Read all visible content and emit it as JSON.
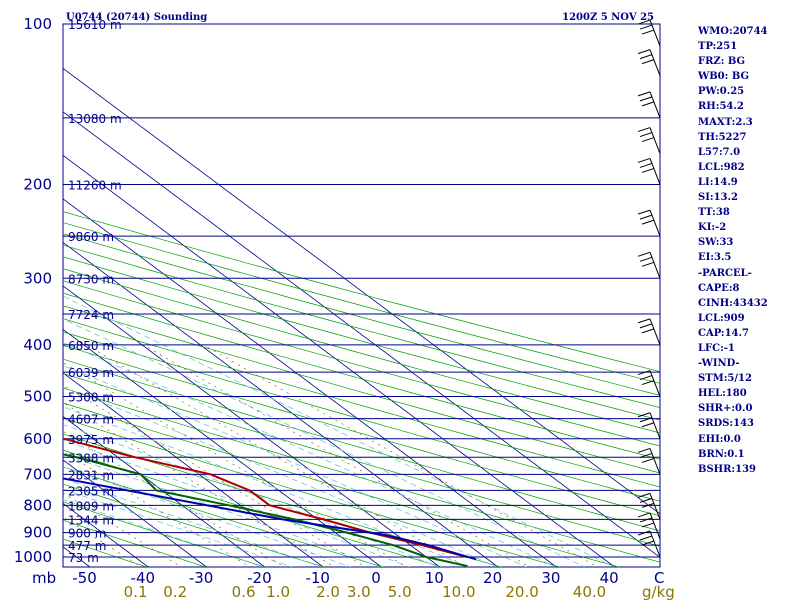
{
  "header": {
    "title": "U0744 (20744) Sounding",
    "time": "1200Z  5 NOV 25"
  },
  "chart_data": {
    "type": "line",
    "title": "U0744 (20744) Sounding",
    "subtitle": "1200Z  5 NOV 25",
    "xlabel": "C",
    "ylabel": "mb",
    "xlim": [
      -50,
      50
    ],
    "ylim": [
      1050,
      100
    ],
    "pressure_levels": [
      100,
      200,
      300,
      400,
      500,
      600,
      700,
      800,
      900,
      1000
    ],
    "height_labels": [
      {
        "p": 100,
        "label": "15610 m"
      },
      {
        "p": 150,
        "label": "13080 m"
      },
      {
        "p": 200,
        "label": "11260 m"
      },
      {
        "p": 250,
        "label": "9860 m"
      },
      {
        "p": 300,
        "label": "8730 m"
      },
      {
        "p": 350,
        "label": "7724 m"
      },
      {
        "p": 400,
        "label": "6850 m"
      },
      {
        "p": 450,
        "label": "6039 m"
      },
      {
        "p": 500,
        "label": "5300 m"
      },
      {
        "p": 550,
        "label": "4607 m"
      },
      {
        "p": 600,
        "label": "3975 m"
      },
      {
        "p": 650,
        "label": "3388 m"
      },
      {
        "p": 700,
        "label": "2831 m"
      },
      {
        "p": 750,
        "label": "2305 m"
      },
      {
        "p": 800,
        "label": "1809 m"
      },
      {
        "p": 850,
        "label": "1344 m"
      },
      {
        "p": 900,
        "label": "900 m"
      },
      {
        "p": 950,
        "label": "477 m"
      },
      {
        "p": 1000,
        "label": "73 m"
      }
    ],
    "temperature_ticks": [
      "-50",
      "-40",
      "-30",
      "-20",
      "-10",
      "0",
      "10",
      "20",
      "30",
      "40"
    ],
    "mixing_ratio_ticks": [
      "0.1",
      "0.2",
      "0.6",
      "1.0",
      "2.0",
      "3.0",
      "5.0",
      "10.0",
      "20.0",
      "40.0"
    ],
    "mixing_ratio_unit": "g/kg",
    "series": [
      {
        "name": "Temperature",
        "color": "#b00000",
        "points": [
          [
            100,
            -44
          ],
          [
            150,
            -58
          ],
          [
            175,
            -60
          ],
          [
            225,
            -67
          ],
          [
            250,
            -71
          ],
          [
            300,
            -67
          ],
          [
            400,
            -51
          ],
          [
            500,
            -38
          ],
          [
            600,
            -25
          ],
          [
            650,
            -17
          ],
          [
            700,
            -8
          ],
          [
            750,
            -5
          ],
          [
            800,
            -5
          ],
          [
            850,
            1
          ],
          [
            900,
            6
          ],
          [
            950,
            12
          ],
          [
            1000,
            17
          ]
        ]
      },
      {
        "name": "Dewpoint",
        "color": "#006400",
        "points": [
          [
            100,
            -53
          ],
          [
            150,
            -65
          ],
          [
            200,
            -73
          ],
          [
            225,
            -77
          ],
          [
            250,
            -79
          ],
          [
            300,
            -80
          ],
          [
            400,
            -70
          ],
          [
            450,
            -60
          ],
          [
            500,
            -52
          ],
          [
            600,
            -38
          ],
          [
            650,
            -27
          ],
          [
            700,
            -20
          ],
          [
            750,
            -21
          ],
          [
            800,
            -12
          ],
          [
            850,
            -4
          ],
          [
            900,
            2
          ],
          [
            950,
            7
          ],
          [
            1000,
            10
          ],
          [
            1040,
            15
          ]
        ]
      },
      {
        "name": "Parcel",
        "color": "#0000b0",
        "points": [
          [
            1010,
            18
          ],
          [
            950,
            13
          ],
          [
            909,
            8
          ],
          [
            850,
            -6
          ],
          [
            700,
            -37
          ],
          [
            600,
            -55
          ],
          [
            500,
            -72
          ],
          [
            400,
            -93
          ],
          [
            300,
            -115
          ],
          [
            200,
            -147
          ],
          [
            100,
            -204
          ]
        ]
      }
    ]
  },
  "indices": [
    "WMO:20744",
    "TP:251",
    "FRZ: BG",
    "WB0: BG",
    "PW:0.25",
    "RH:54.2",
    "MAXT:2.3",
    "TH:5227",
    "L57:7.0",
    "LCL:982",
    "LI:14.9",
    "SI:13.2",
    "TT:38",
    "KI:-2",
    "SW:33",
    "EI:3.5",
    "-PARCEL-",
    "CAPE:8",
    "CINH:43432",
    "LCL:909",
    "CAP:14.7",
    "LFC:-1",
    "-WIND-",
    "STM:5/12",
    "HEL:180",
    "SHR+:0.0",
    "SRDS:143",
    "EHI:0.0",
    "BRN:0.1",
    "BSHR:139"
  ],
  "colors": {
    "axis": "#00008b",
    "isotherm": "#00008b",
    "dry_adiabat": "#00a000",
    "moist_adiabat": "#6fc3e0",
    "mixing_ratio": "#8b6914"
  }
}
